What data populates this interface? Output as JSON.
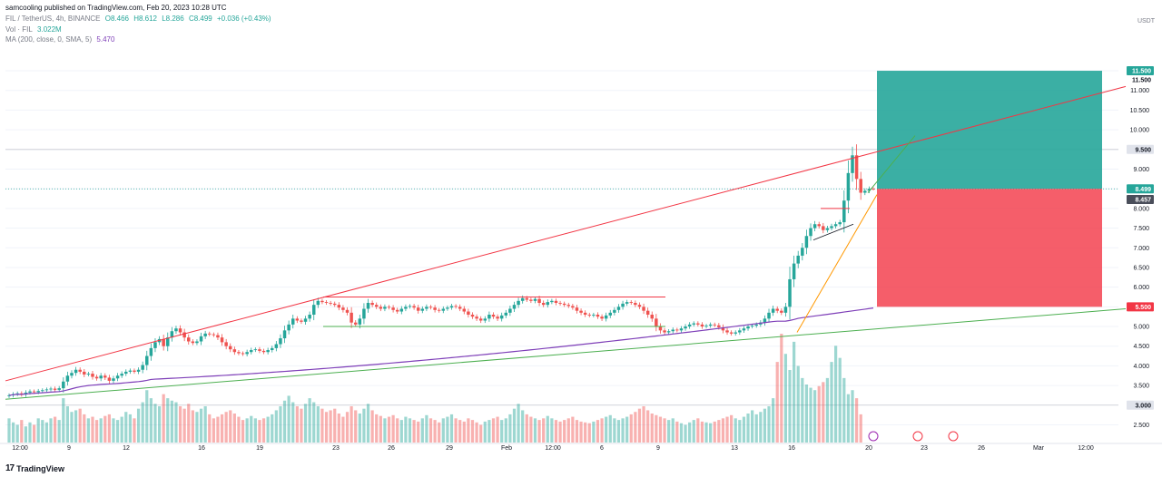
{
  "header": {
    "publisher": "samcooling published on TradingView.com, Feb 20, 2023 10:28 UTC",
    "symbol": "FIL / TetherUS, 4h, BINANCE",
    "open": "O8.466",
    "high": "H8.612",
    "low": "L8.286",
    "close": "C8.499",
    "change": "+0.036 (+0.43%)",
    "vol_label": "Vol · FIL",
    "vol_value": "3.022M",
    "ma_label": "MA (200, close, 0, SMA, 5)",
    "ma_value": "5.470"
  },
  "axis_unit": "USDT",
  "brand": "TradingView",
  "colors": {
    "up": "#26a69a",
    "down": "#ef5350",
    "ma": "#7e3fb8",
    "trend_red": "#f23645",
    "trend_green": "#4caf50",
    "trend_orange": "#ff9800",
    "target": "#26a69a",
    "stop": "#f23645"
  },
  "chart_data": {
    "type": "candlestick",
    "interval": "4h",
    "symbol": "FIL/USDT",
    "y_range": [
      2.05,
      12.1
    ],
    "y_ticks": [
      "2.500",
      "3.000",
      "3.500",
      "4.000",
      "4.500",
      "5.000",
      "5.500",
      "6.000",
      "6.500",
      "7.000",
      "7.500",
      "8.000",
      "8.500",
      "9.000",
      "9.500",
      "10.000",
      "10.500",
      "11.000",
      "11.500"
    ],
    "x_ticks": [
      "12:00",
      "9",
      "12",
      "16",
      "19",
      "23",
      "26",
      "29",
      "Feb",
      "12:00",
      "6",
      "9",
      "13",
      "16",
      "20",
      "23",
      "26",
      "Mar",
      "12:00"
    ],
    "price_labels": [
      {
        "text": "11.500",
        "value": 11.5,
        "style": "green"
      },
      {
        "text": "11.500",
        "value": 11.5,
        "style": "plain"
      },
      {
        "text": "9.500",
        "value": 9.5,
        "style": "gray"
      },
      {
        "text": "8.499",
        "value": 8.499,
        "style": "green"
      },
      {
        "text": "8.457",
        "value": 8.457,
        "style": "dark"
      },
      {
        "text": "5.500",
        "value": 5.5,
        "style": "red"
      },
      {
        "text": "3.000",
        "value": 3.0,
        "style": "gray"
      }
    ],
    "last_price": 8.499,
    "position": {
      "entry": 8.499,
      "target": 11.5,
      "stop": 5.5
    },
    "closes": [
      3.25,
      3.28,
      3.3,
      3.27,
      3.32,
      3.35,
      3.33,
      3.36,
      3.38,
      3.4,
      3.42,
      3.39,
      3.43,
      3.6,
      3.75,
      3.82,
      3.9,
      3.85,
      3.78,
      3.8,
      3.72,
      3.68,
      3.75,
      3.7,
      3.62,
      3.68,
      3.75,
      3.8,
      3.85,
      3.88,
      3.85,
      3.9,
      4.02,
      4.25,
      4.45,
      4.6,
      4.68,
      4.5,
      4.72,
      4.88,
      4.95,
      4.85,
      4.72,
      4.62,
      4.58,
      4.62,
      4.75,
      4.82,
      4.8,
      4.78,
      4.72,
      4.6,
      4.5,
      4.42,
      4.35,
      4.32,
      4.3,
      4.35,
      4.4,
      4.42,
      4.38,
      4.35,
      4.4,
      4.45,
      4.55,
      4.7,
      4.9,
      5.05,
      5.2,
      5.15,
      5.12,
      5.2,
      5.3,
      5.55,
      5.65,
      5.62,
      5.6,
      5.58,
      5.55,
      5.48,
      5.42,
      5.35,
      5.1,
      5.05,
      5.2,
      5.45,
      5.6,
      5.55,
      5.5,
      5.45,
      5.5,
      5.48,
      5.42,
      5.38,
      5.45,
      5.5,
      5.52,
      5.48,
      5.4,
      5.45,
      5.5,
      5.48,
      5.42,
      5.4,
      5.45,
      5.48,
      5.52,
      5.5,
      5.45,
      5.38,
      5.3,
      5.25,
      5.2,
      5.15,
      5.2,
      5.3,
      5.25,
      5.2,
      5.28,
      5.35,
      5.45,
      5.55,
      5.65,
      5.72,
      5.68,
      5.65,
      5.7,
      5.6,
      5.55,
      5.62,
      5.65,
      5.6,
      5.58,
      5.55,
      5.52,
      5.48,
      5.4,
      5.35,
      5.3,
      5.28,
      5.3,
      5.25,
      5.2,
      5.28,
      5.35,
      5.42,
      5.5,
      5.58,
      5.62,
      5.6,
      5.55,
      5.5,
      5.4,
      5.3,
      5.2,
      5.0,
      4.9,
      4.85,
      4.88,
      4.92,
      4.9,
      4.95,
      5.0,
      5.05,
      5.08,
      5.05,
      5.0,
      5.02,
      5.05,
      5.03,
      4.98,
      4.9,
      4.85,
      4.82,
      4.85,
      4.9,
      4.95,
      5.0,
      5.02,
      5.05,
      5.1,
      5.2,
      5.35,
      5.45,
      5.4,
      5.35,
      5.5,
      6.2,
      6.6,
      6.8,
      7.0,
      7.3,
      7.5,
      7.6,
      7.55,
      7.45,
      7.5,
      7.55,
      7.6,
      7.65,
      8.2,
      8.9,
      9.35,
      8.75,
      8.4,
      8.45,
      8.5,
      8.499
    ],
    "volumes": [
      0.3,
      0.25,
      0.22,
      0.28,
      0.2,
      0.25,
      0.22,
      0.3,
      0.28,
      0.25,
      0.3,
      0.32,
      0.28,
      0.55,
      0.45,
      0.38,
      0.4,
      0.42,
      0.35,
      0.3,
      0.32,
      0.28,
      0.3,
      0.33,
      0.35,
      0.3,
      0.28,
      0.32,
      0.38,
      0.35,
      0.3,
      0.42,
      0.5,
      0.65,
      0.55,
      0.48,
      0.45,
      0.6,
      0.55,
      0.52,
      0.5,
      0.45,
      0.42,
      0.48,
      0.4,
      0.38,
      0.42,
      0.45,
      0.35,
      0.3,
      0.32,
      0.35,
      0.38,
      0.4,
      0.36,
      0.32,
      0.28,
      0.3,
      0.33,
      0.3,
      0.28,
      0.3,
      0.32,
      0.35,
      0.4,
      0.45,
      0.52,
      0.58,
      0.5,
      0.45,
      0.42,
      0.48,
      0.55,
      0.5,
      0.45,
      0.42,
      0.38,
      0.4,
      0.42,
      0.36,
      0.32,
      0.38,
      0.45,
      0.4,
      0.36,
      0.42,
      0.48,
      0.4,
      0.35,
      0.33,
      0.3,
      0.32,
      0.34,
      0.3,
      0.28,
      0.32,
      0.3,
      0.28,
      0.26,
      0.3,
      0.34,
      0.3,
      0.28,
      0.25,
      0.3,
      0.32,
      0.35,
      0.3,
      0.28,
      0.26,
      0.3,
      0.28,
      0.25,
      0.22,
      0.26,
      0.28,
      0.3,
      0.32,
      0.28,
      0.3,
      0.35,
      0.42,
      0.48,
      0.4,
      0.35,
      0.32,
      0.3,
      0.28,
      0.3,
      0.33,
      0.3,
      0.28,
      0.26,
      0.28,
      0.3,
      0.32,
      0.28,
      0.26,
      0.25,
      0.24,
      0.26,
      0.28,
      0.3,
      0.32,
      0.34,
      0.3,
      0.28,
      0.3,
      0.32,
      0.35,
      0.38,
      0.42,
      0.45,
      0.4,
      0.36,
      0.34,
      0.32,
      0.3,
      0.28,
      0.3,
      0.26,
      0.24,
      0.22,
      0.25,
      0.28,
      0.3,
      0.26,
      0.25,
      0.24,
      0.26,
      0.28,
      0.3,
      0.32,
      0.34,
      0.3,
      0.28,
      0.32,
      0.36,
      0.4,
      0.35,
      0.38,
      0.42,
      0.45,
      0.55,
      1.0,
      1.35,
      1.1,
      0.9,
      1.25,
      0.95,
      0.8,
      0.72,
      0.68,
      0.65,
      0.7,
      0.75,
      0.8,
      1.0,
      1.2,
      1.05,
      0.8,
      0.6,
      0.65,
      0.55,
      0.35
    ]
  }
}
